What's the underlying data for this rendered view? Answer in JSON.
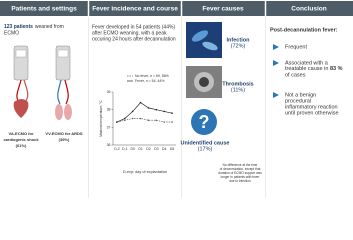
{
  "headers": [
    "Patients and settings",
    "Fever incidence and course",
    "Fever causes",
    "Conclusion"
  ],
  "patients": {
    "count": "123 patients",
    "intro_lines": [
      "weaned from",
      "ECMO"
    ],
    "va_label": [
      "VA-ECMO for",
      "cardiogenic shock",
      "(61%)"
    ],
    "vv_label": [
      "VV-ECMO for ARDS",
      "(39%)"
    ]
  },
  "fever": {
    "lines": [
      "Fever developed in 54 patients (44%)",
      "after ECMO weaning, with a peak",
      "occuring 24 hours after decannulation"
    ],
    "chart": {
      "type": "line",
      "y_label": "Maximal temperature, °C",
      "x_note": "D-exp: day of explantation",
      "categories": [
        "D-2",
        "D-1",
        "D0",
        "D1",
        "D2",
        "D3",
        "D4",
        "D5"
      ],
      "ylim": [
        36,
        39
      ],
      "yticks": [
        36,
        37,
        38,
        39
      ],
      "series": [
        {
          "name": "No fever, n = 69, 56%",
          "color": "#666666",
          "values": [
            37.3,
            37.4,
            37.5,
            37.5,
            37.4,
            37.4,
            37.3,
            37.3
          ]
        },
        {
          "name": "Fever, n = 54, 44%",
          "color": "#222222",
          "values": [
            37.3,
            37.5,
            37.9,
            38.4,
            38.1,
            38.0,
            37.9,
            37.8
          ]
        }
      ]
    }
  },
  "causes": {
    "items": [
      {
        "name": "Infection",
        "pct": "(72%)"
      },
      {
        "name": "Thrombosis",
        "pct": "(11%)"
      },
      {
        "name": "Unidentified cause",
        "pct": "(17%)"
      }
    ],
    "note_lines": [
      "No difference at the time",
      "of decannulation, except that",
      "duration of ECMO support was",
      "longer in patients with fever",
      "due to infection"
    ]
  },
  "conclusion": {
    "title": "Post-decannulation fever:",
    "item1": "Frequent",
    "item2": {
      "line1": "Associated with a",
      "line2": "treatable cause in ",
      "bold": "83 %",
      "line3": "of cases"
    },
    "item3": [
      "Not a benign",
      "procedural",
      "inflammatory reaction",
      "until proven otherwise"
    ]
  }
}
